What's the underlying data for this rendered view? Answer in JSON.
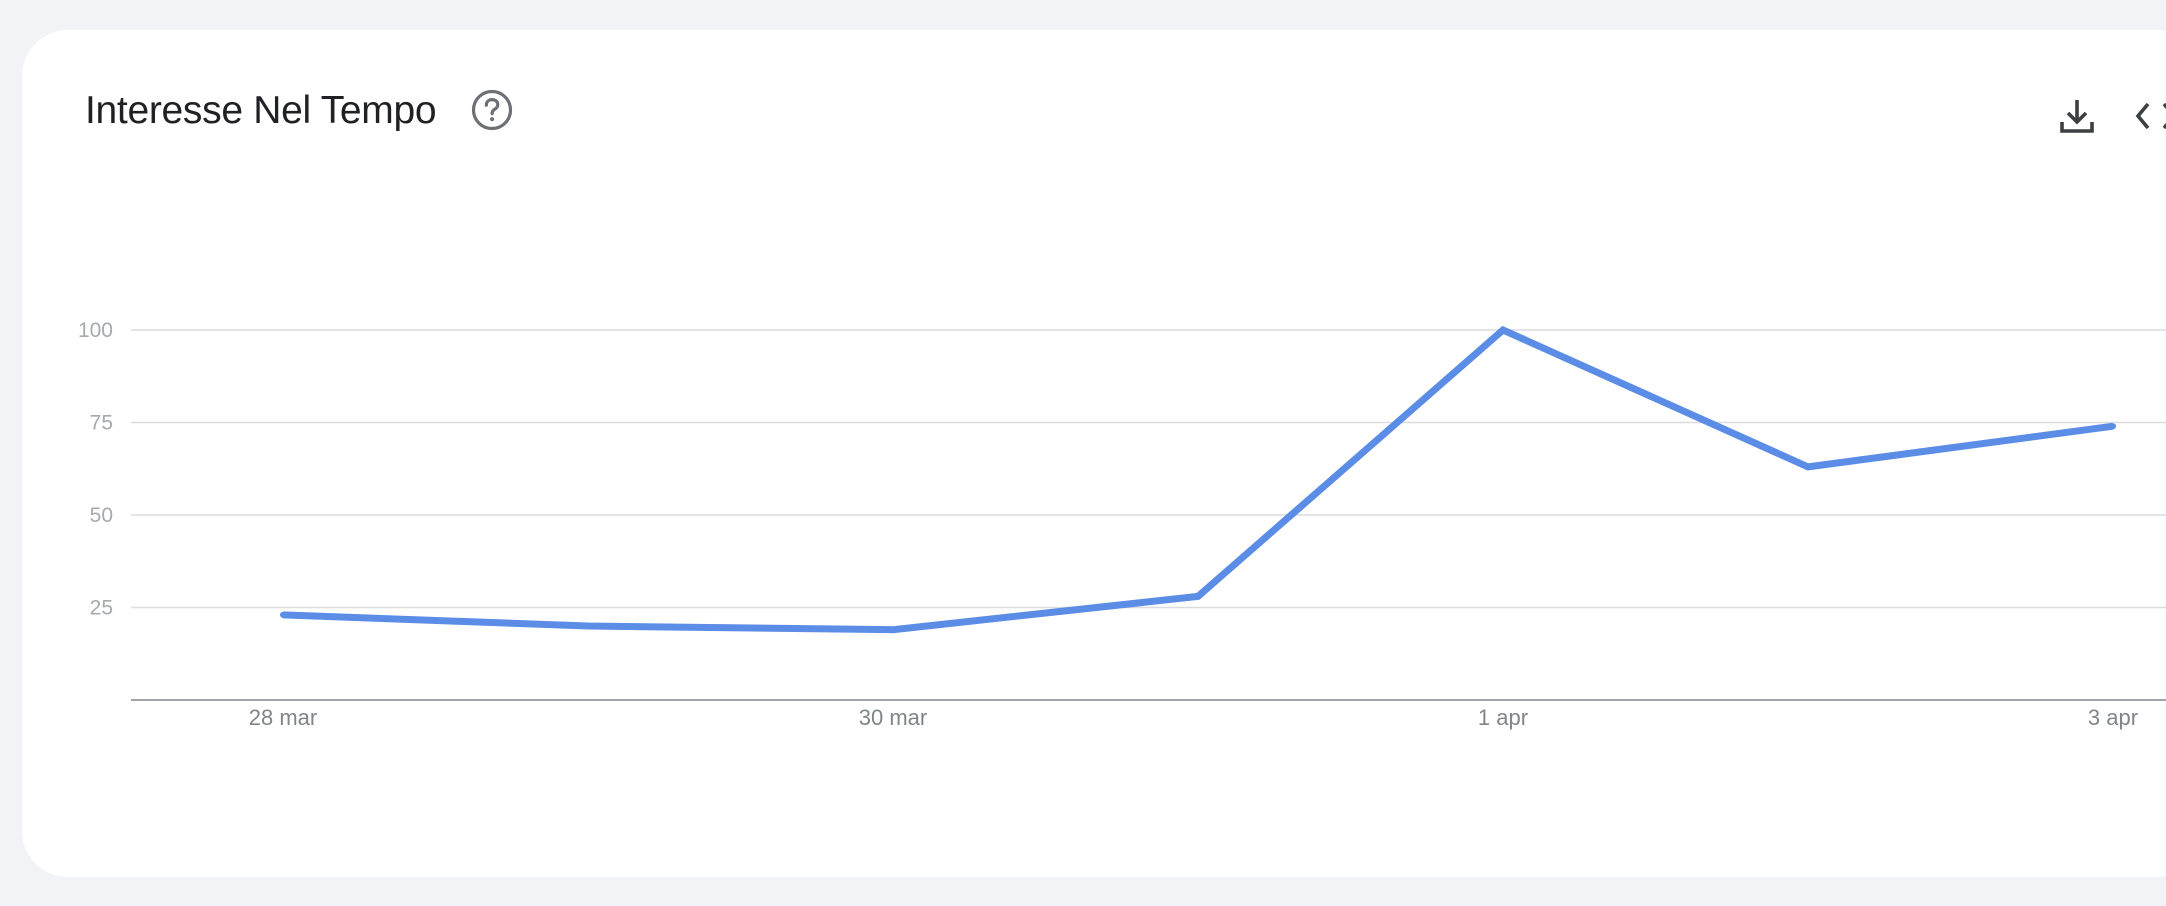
{
  "card": {
    "title": "Interesse Nel Tempo",
    "help_icon": "help-circle-icon",
    "download_icon": "download-icon",
    "embed_icon": "code-embed-icon"
  },
  "chart_data": {
    "type": "line",
    "title": "Interesse Nel Tempo",
    "xlabel": "",
    "ylabel": "",
    "x": [
      "28 mar",
      "29 mar",
      "30 mar",
      "31 mar",
      "1 apr",
      "2 apr",
      "3 apr"
    ],
    "x_tick_labels": [
      "28 mar",
      "30 mar",
      "1 apr",
      "3 apr"
    ],
    "y_ticks": [
      25,
      50,
      75,
      100
    ],
    "ylim": [
      0,
      100
    ],
    "grid": true,
    "series": [
      {
        "values": [
          23,
          20,
          19,
          28,
          100,
          63,
          74
        ],
        "color": "#5b8de6"
      }
    ],
    "colors": {
      "line": "#5b8de6",
      "grid": "#dadce0",
      "axis": "#80868b"
    }
  }
}
